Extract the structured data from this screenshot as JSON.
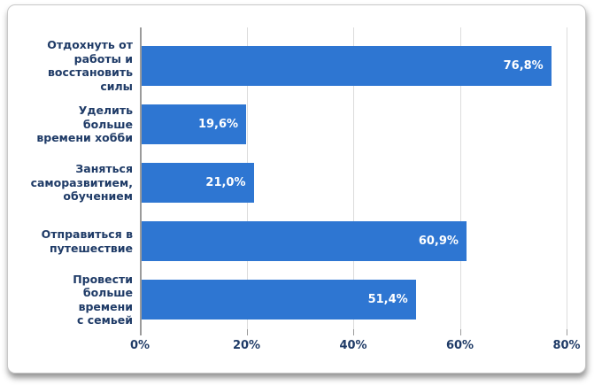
{
  "chart_data": {
    "type": "bar",
    "orientation": "horizontal",
    "title": "",
    "categories": [
      "Отдохнуть от работы и восстановить силы",
      "Уделить больше времени хобби",
      "Заняться саморазвитием, обучением",
      "Отправиться в путешествие",
      "Провести больше времени с семьей"
    ],
    "category_lines": [
      [
        "Отдохнуть от",
        "работы и",
        "восстановить",
        "силы"
      ],
      [
        "Уделить больше",
        "времени хобби"
      ],
      [
        "Заняться",
        "саморазвитием,",
        "обучением"
      ],
      [
        "Отправиться в",
        "путешествие"
      ],
      [
        "Провести",
        "больше времени",
        "с семьей"
      ]
    ],
    "values": [
      76.8,
      19.6,
      21.0,
      60.9,
      51.4
    ],
    "value_labels": [
      "76,8%",
      "19,6%",
      "21,0%",
      "60,9%",
      "51,4%"
    ],
    "x_ticks": [
      {
        "value": 0,
        "label": "0%"
      },
      {
        "value": 20,
        "label": "20%"
      },
      {
        "value": 40,
        "label": "40%"
      },
      {
        "value": 60,
        "label": "60%"
      },
      {
        "value": 80,
        "label": "80%"
      }
    ],
    "xlim": [
      0,
      83
    ],
    "grid": true,
    "legend": "none",
    "value_label_position": "inside-end",
    "colors": {
      "bar": "#2e76d2",
      "value_label": "#ffffff",
      "category_label": "#1f3b67",
      "tick_label": "#1f3b67",
      "gridline": "#dcdcdc",
      "axis_line": "#9b9b9b",
      "card_background": "#ffffff",
      "card_border": "#c8c8c8"
    }
  }
}
